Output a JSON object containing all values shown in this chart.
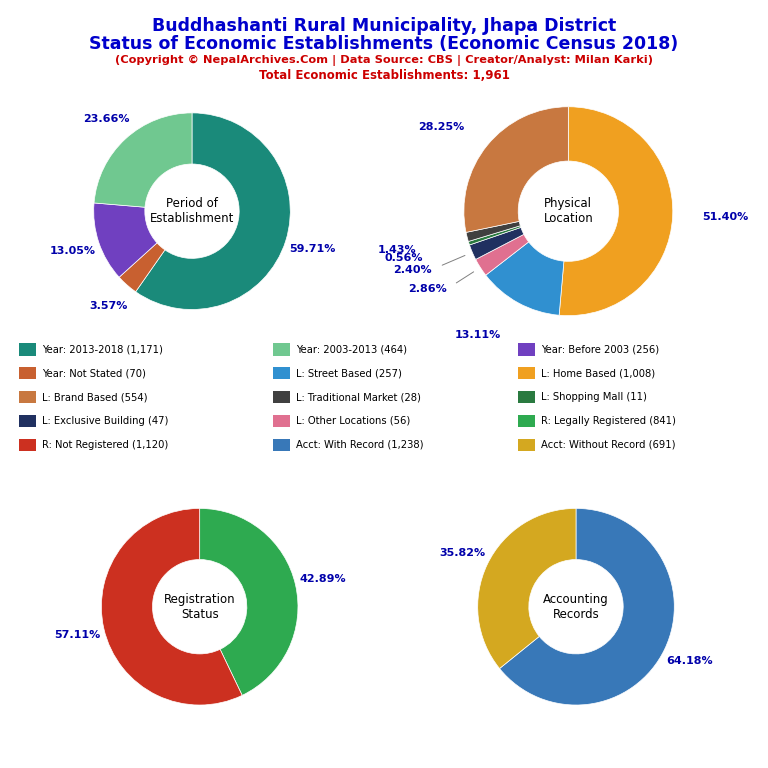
{
  "title_line1": "Buddhashanti Rural Municipality, Jhapa District",
  "title_line2": "Status of Economic Establishments (Economic Census 2018)",
  "subtitle": "(Copyright © NepalArchives.Com | Data Source: CBS | Creator/Analyst: Milan Karki)",
  "total_line": "Total Economic Establishments: 1,961",
  "pie1_label": "Period of\nEstablishment",
  "pie1_values": [
    1171,
    70,
    256,
    464
  ],
  "pie1_pcts": [
    "59.71%",
    "3.57%",
    "13.05%",
    "23.66%"
  ],
  "pie1_colors": [
    "#1a8a7a",
    "#c86030",
    "#7040c0",
    "#70c890"
  ],
  "pie2_label": "Physical\nLocation",
  "pie2_values": [
    1008,
    257,
    56,
    47,
    11,
    28,
    554
  ],
  "pie2_pcts": [
    "51.40%",
    "13.11%",
    "2.86%",
    "2.40%",
    "0.56%",
    "1.43%",
    "28.25%"
  ],
  "pie2_colors": [
    "#f0a020",
    "#3090d0",
    "#e07090",
    "#203060",
    "#2a7a40",
    "#404040",
    "#c87840"
  ],
  "pie3_label": "Registration\nStatus",
  "pie3_values": [
    841,
    1120
  ],
  "pie3_pcts": [
    "42.89%",
    "57.11%"
  ],
  "pie3_colors": [
    "#2eaa50",
    "#cc3020"
  ],
  "pie4_label": "Accounting\nRecords",
  "pie4_values": [
    1238,
    691
  ],
  "pie4_pcts": [
    "64.18%",
    "35.82%"
  ],
  "pie4_colors": [
    "#3878b8",
    "#d4a820"
  ],
  "legend_items": [
    {
      "label": "Year: 2013-2018 (1,171)",
      "color": "#1a8a7a"
    },
    {
      "label": "Year: 2003-2013 (464)",
      "color": "#70c890"
    },
    {
      "label": "Year: Before 2003 (256)",
      "color": "#7040c0"
    },
    {
      "label": "Year: Not Stated (70)",
      "color": "#c86030"
    },
    {
      "label": "L: Street Based (257)",
      "color": "#3090d0"
    },
    {
      "label": "L: Home Based (1,008)",
      "color": "#f0a020"
    },
    {
      "label": "L: Brand Based (554)",
      "color": "#c87840"
    },
    {
      "label": "L: Traditional Market (28)",
      "color": "#404040"
    },
    {
      "label": "L: Shopping Mall (11)",
      "color": "#2a7a40"
    },
    {
      "label": "L: Exclusive Building (47)",
      "color": "#203060"
    },
    {
      "label": "L: Other Locations (56)",
      "color": "#e07090"
    },
    {
      "label": "R: Legally Registered (841)",
      "color": "#2eaa50"
    },
    {
      "label": "R: Not Registered (1,120)",
      "color": "#cc3020"
    },
    {
      "label": "Acct: With Record (1,238)",
      "color": "#3878b8"
    },
    {
      "label": "Acct: Without Record (691)",
      "color": "#d4a820"
    }
  ]
}
